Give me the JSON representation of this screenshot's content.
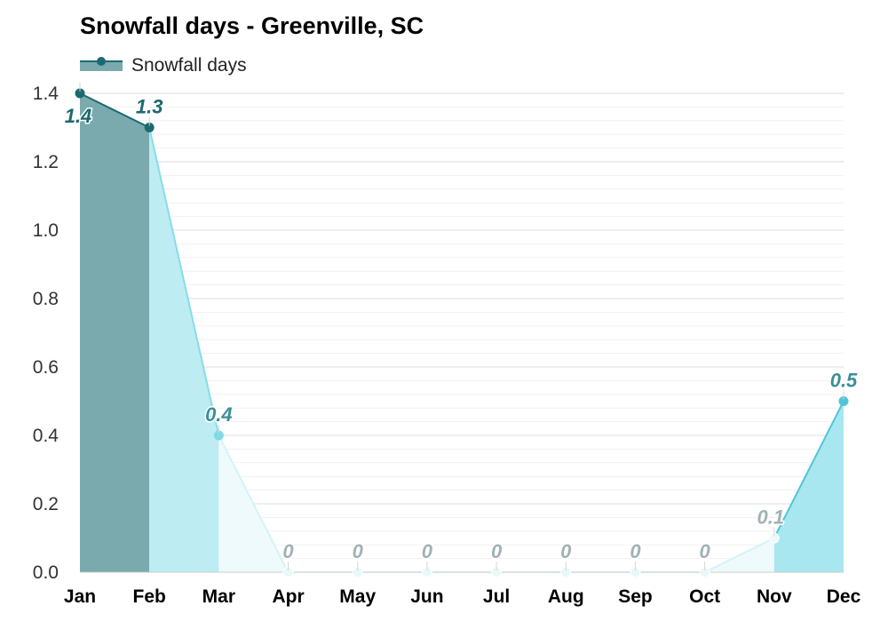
{
  "chart_data": {
    "type": "area",
    "title": "Snowfall days - Greenville, SC",
    "categories": [
      "Jan",
      "Feb",
      "Mar",
      "Apr",
      "May",
      "Jun",
      "Jul",
      "Aug",
      "Sep",
      "Oct",
      "Nov",
      "Dec"
    ],
    "series": [
      {
        "name": "Snowfall days",
        "values": [
          1.4,
          1.3,
          0.4,
          0,
          0,
          0,
          0,
          0,
          0,
          0,
          0.1,
          0.5
        ],
        "data_labels": [
          "1.4",
          "1.3",
          "0.4",
          "0",
          "0",
          "0",
          "0",
          "0",
          "0",
          "0",
          "0.1",
          "0.5"
        ]
      }
    ],
    "ylim": [
      0,
      1.4
    ],
    "y_ticks": [
      "0.0",
      "0.2",
      "0.4",
      "0.6",
      "0.8",
      "1.0",
      "1.2",
      "1.4"
    ],
    "y_tick_values": [
      0,
      0.2,
      0.4,
      0.6,
      0.8,
      1.0,
      1.2,
      1.4
    ],
    "xlabel": "",
    "ylabel": "",
    "grid": true,
    "legend_position": "top-left",
    "colors": {
      "line_dark": "#1c6a6f",
      "fill_dark": "#7aaaae",
      "fill_medium": "#bdecf2",
      "fill_light": "#eefafc",
      "line_medium": "#86dde9",
      "dec_fill": "#a8e6f0",
      "dec_line": "#4fc6d8",
      "label_dark": "#1c6a6f",
      "label_mid": "#3b8e99",
      "label_grey": "#a0b2b4"
    }
  }
}
